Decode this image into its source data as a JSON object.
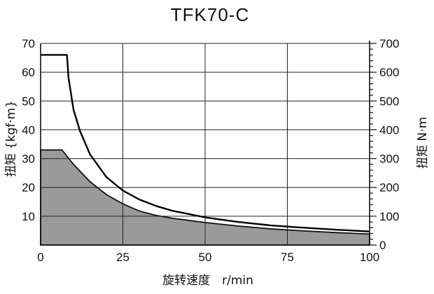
{
  "chart_data": {
    "type": "area",
    "title": "TFK70-C",
    "xlabel": "旋转速度　r/min",
    "ylabel_left": "扭矩 {kgf·m}",
    "ylabel_right": "扭矩 N·m",
    "xlim": [
      0,
      100
    ],
    "ylim_left": [
      0,
      70
    ],
    "ylim_right": [
      0,
      700
    ],
    "x_ticks": [
      "0",
      "25",
      "50",
      "75",
      "100"
    ],
    "y_ticks_left": [
      "10",
      "20",
      "30",
      "40",
      "50",
      "60",
      "70"
    ],
    "y_ticks_right": [
      "0",
      "100",
      "200",
      "300",
      "400",
      "500",
      "600",
      "700"
    ],
    "grid": true,
    "series": [
      {
        "style": "line",
        "color": "#000000",
        "x": [
          0,
          8,
          8.5,
          10,
          12,
          15,
          20,
          25,
          30,
          35,
          40,
          50,
          60,
          70,
          80,
          90,
          100
        ],
        "y": [
          66,
          66,
          58,
          47,
          39.5,
          31.5,
          23.6,
          18.9,
          15.8,
          13.6,
          11.9,
          9.6,
          8.0,
          6.8,
          6.0,
          5.3,
          4.7
        ]
      },
      {
        "style": "filled-area",
        "color": "#9a9a9a",
        "x": [
          0,
          6.5,
          10,
          15,
          20,
          25,
          30,
          35,
          40,
          50,
          60,
          70,
          80,
          90,
          100
        ],
        "y": [
          33,
          33,
          28,
          22,
          17.5,
          14.3,
          11.8,
          10.3,
          9.3,
          7.8,
          6.6,
          5.6,
          4.9,
          4.3,
          3.8
        ]
      }
    ]
  }
}
